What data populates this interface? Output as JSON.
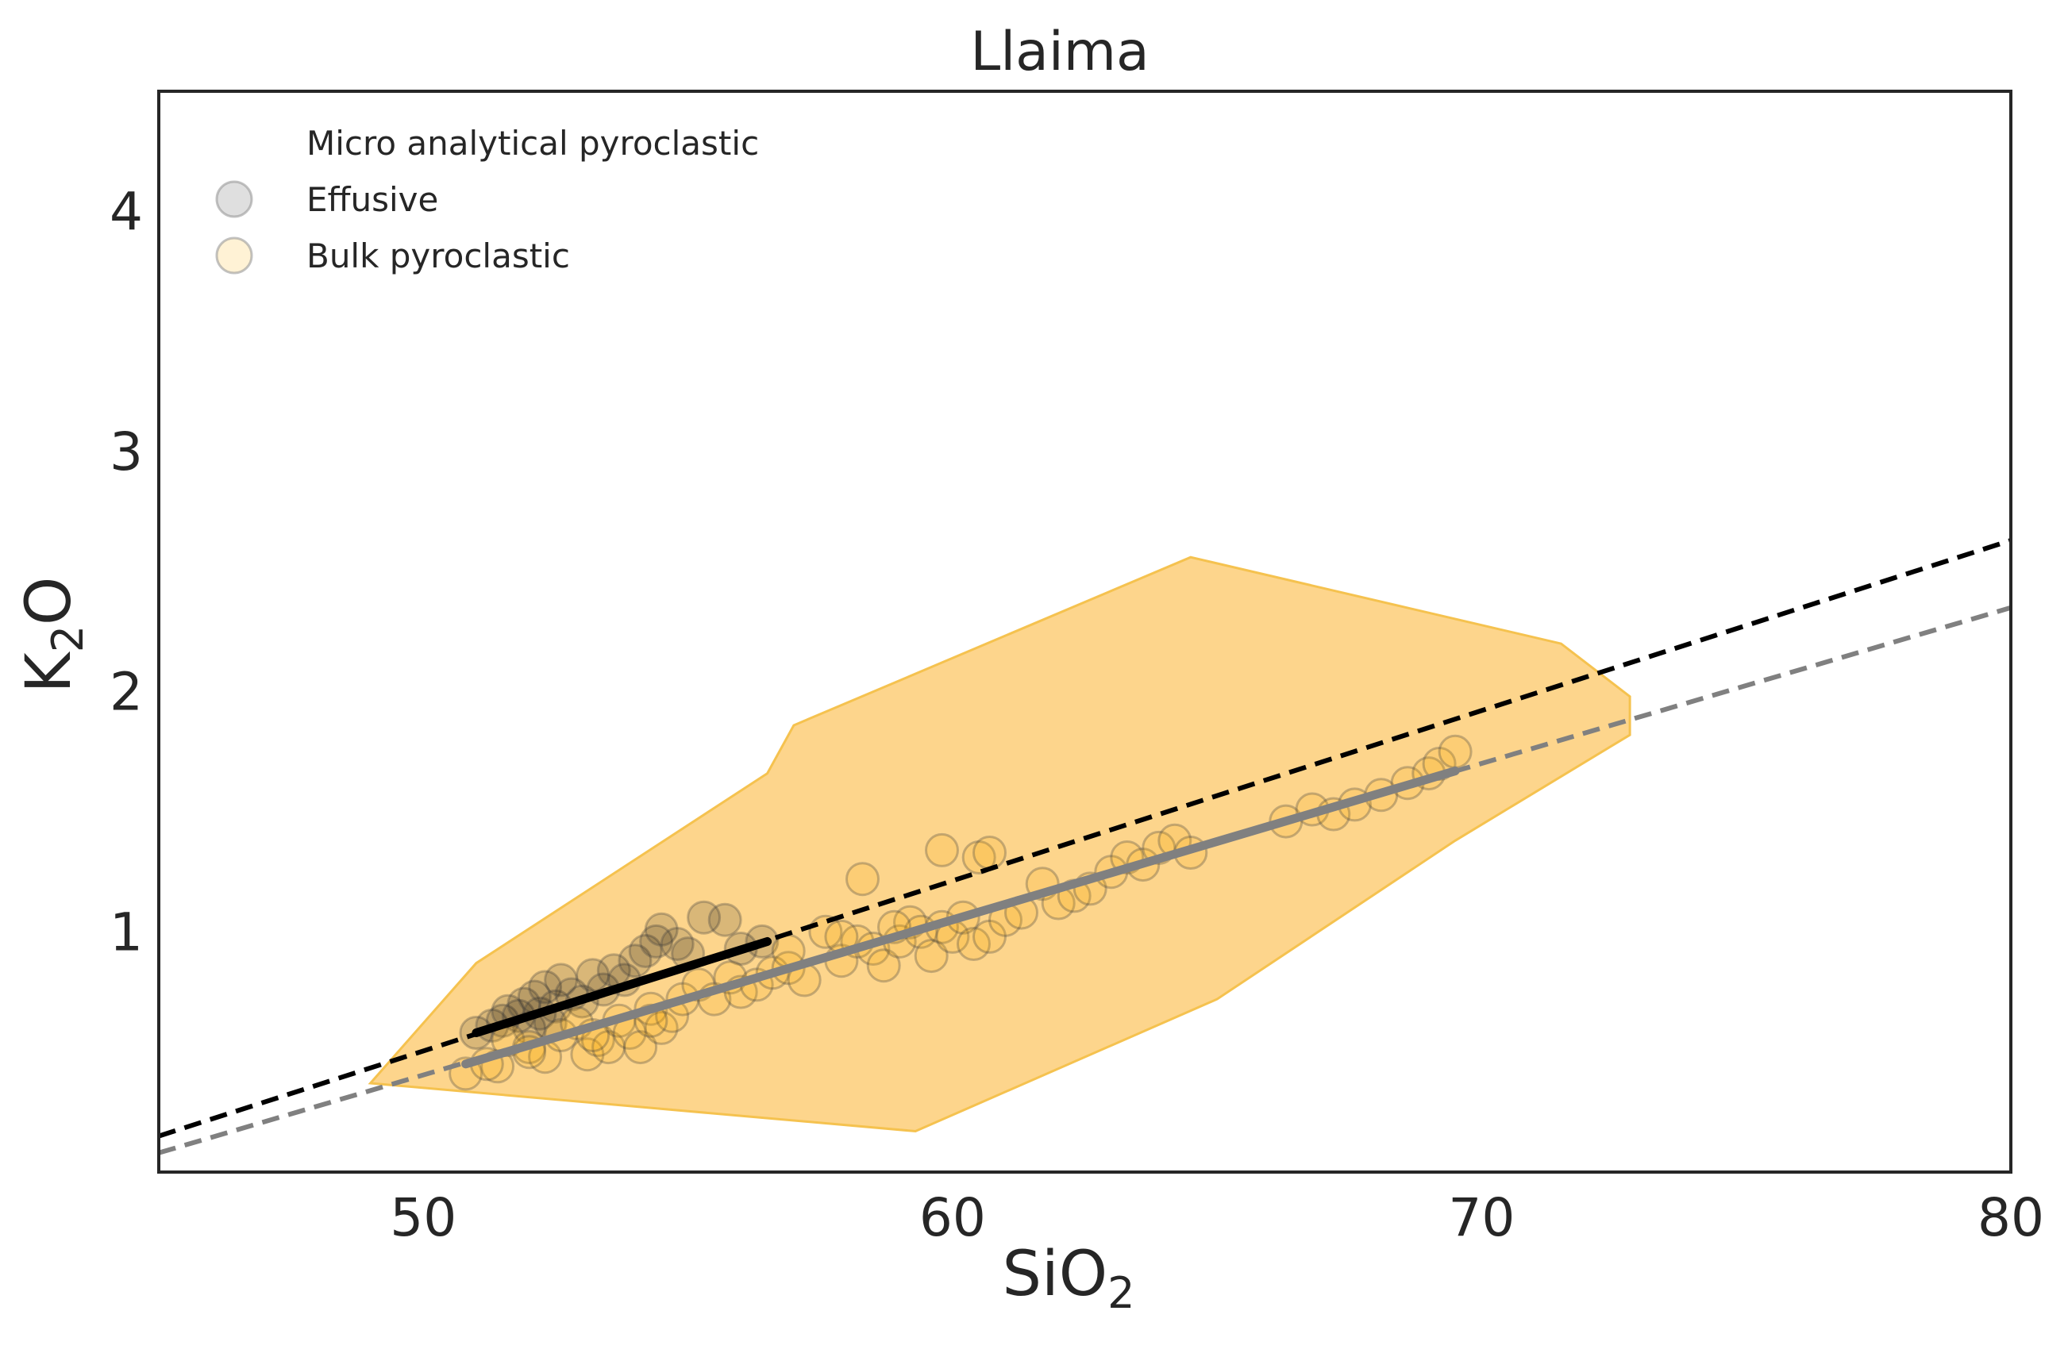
{
  "chart_data": {
    "type": "scatter",
    "title": "Llaima",
    "xlabel": {
      "main": "SiO",
      "sub": "2"
    },
    "ylabel": {
      "main": "K",
      "sub": "2",
      "suffix": "O"
    },
    "xlim": [
      45,
      80
    ],
    "ylim": [
      0,
      4.5
    ],
    "x_ticks": [
      50,
      60,
      70,
      80
    ],
    "y_ticks": [
      1,
      2,
      3,
      4
    ],
    "grid": false,
    "legend": {
      "placement": "top-left",
      "entries": [
        {
          "label": "Micro analytical pyroclastic",
          "marker": "none"
        },
        {
          "label": "Effusive",
          "marker": "circle",
          "color": "#808080"
        },
        {
          "label": "Bulk pyroclastic",
          "marker": "circle",
          "color": "#FFE8B3"
        }
      ]
    },
    "colors": {
      "hull_fill": "#FDD58C",
      "hull_stroke": "#F5C24F",
      "marker_fill": "#F6A800",
      "marker_stroke": "#404040",
      "trend_effusive": "#000000",
      "trend_bulk": "#808080"
    },
    "hull": [
      [
        49.0,
        0.37
      ],
      [
        51.0,
        0.87
      ],
      [
        56.5,
        1.66
      ],
      [
        57.0,
        1.86
      ],
      [
        64.5,
        2.56
      ],
      [
        71.5,
        2.2
      ],
      [
        72.8,
        1.98
      ],
      [
        72.8,
        1.82
      ],
      [
        69.5,
        1.38
      ],
      [
        65.0,
        0.72
      ],
      [
        59.3,
        0.17
      ],
      [
        49.0,
        0.37
      ]
    ],
    "trend_lines": [
      {
        "name": "effusive-fit-extrapolated",
        "style": "dashed",
        "color": "#000000",
        "x": [
          45,
          80
        ],
        "y": [
          0.15,
          2.63
        ]
      },
      {
        "name": "bulk-fit-extrapolated",
        "style": "dashed",
        "color": "#808080",
        "x": [
          45,
          80
        ],
        "y": [
          0.08,
          2.35
        ]
      },
      {
        "name": "effusive-fit",
        "style": "solid",
        "color": "#000000",
        "x": [
          51.0,
          56.5
        ],
        "y": [
          0.58,
          0.96
        ]
      },
      {
        "name": "bulk-fit",
        "style": "solid",
        "color": "#808080",
        "x": [
          50.8,
          69.5
        ],
        "y": [
          0.45,
          1.67
        ]
      }
    ],
    "series": [
      {
        "name": "Effusive",
        "color": "#000000",
        "points": [
          [
            51.0,
            0.58
          ],
          [
            51.3,
            0.61
          ],
          [
            51.5,
            0.63
          ],
          [
            51.6,
            0.67
          ],
          [
            51.8,
            0.65
          ],
          [
            51.9,
            0.7
          ],
          [
            52.0,
            0.6
          ],
          [
            52.1,
            0.73
          ],
          [
            52.2,
            0.66
          ],
          [
            52.3,
            0.77
          ],
          [
            52.4,
            0.62
          ],
          [
            52.5,
            0.69
          ],
          [
            52.6,
            0.8
          ],
          [
            52.8,
            0.74
          ],
          [
            53.0,
            0.71
          ],
          [
            53.2,
            0.82
          ],
          [
            53.4,
            0.76
          ],
          [
            53.6,
            0.84
          ],
          [
            53.8,
            0.8
          ],
          [
            54.0,
            0.88
          ],
          [
            54.2,
            0.92
          ],
          [
            54.4,
            0.96
          ],
          [
            54.5,
            1.01
          ],
          [
            54.8,
            0.95
          ],
          [
            55.0,
            0.91
          ],
          [
            55.3,
            1.06
          ],
          [
            55.7,
            1.05
          ],
          [
            56.0,
            0.93
          ],
          [
            56.4,
            0.96
          ]
        ]
      },
      {
        "name": "Bulk pyroclastic",
        "color": "#F6A800",
        "points": [
          [
            50.8,
            0.41
          ],
          [
            51.4,
            0.44
          ],
          [
            51.6,
            0.55
          ],
          [
            52.0,
            0.52
          ],
          [
            52.3,
            0.48
          ],
          [
            52.6,
            0.57
          ],
          [
            52.9,
            0.62
          ],
          [
            53.1,
            0.49
          ],
          [
            53.3,
            0.55
          ],
          [
            53.5,
            0.52
          ],
          [
            53.7,
            0.63
          ],
          [
            53.9,
            0.58
          ],
          [
            54.1,
            0.52
          ],
          [
            54.3,
            0.68
          ],
          [
            54.5,
            0.6
          ],
          [
            54.7,
            0.65
          ],
          [
            54.9,
            0.72
          ],
          [
            55.2,
            0.78
          ],
          [
            55.5,
            0.72
          ],
          [
            55.8,
            0.81
          ],
          [
            56.0,
            0.75
          ],
          [
            56.3,
            0.78
          ],
          [
            56.6,
            0.83
          ],
          [
            56.9,
            0.85
          ],
          [
            57.2,
            0.8
          ],
          [
            57.6,
            1.0
          ],
          [
            57.9,
            0.88
          ],
          [
            58.2,
            0.96
          ],
          [
            58.5,
            0.93
          ],
          [
            58.7,
            0.86
          ],
          [
            59.0,
            0.96
          ],
          [
            59.2,
            1.04
          ],
          [
            59.4,
            1.0
          ],
          [
            59.6,
            0.9
          ],
          [
            59.8,
            1.02
          ],
          [
            60.0,
            0.98
          ],
          [
            60.2,
            1.06
          ],
          [
            60.4,
            0.95
          ],
          [
            60.7,
            0.98
          ],
          [
            61.0,
            1.05
          ],
          [
            61.3,
            1.08
          ],
          [
            61.7,
            1.2
          ],
          [
            62.0,
            1.12
          ],
          [
            62.3,
            1.15
          ],
          [
            62.6,
            1.18
          ],
          [
            63.0,
            1.25
          ],
          [
            63.3,
            1.31
          ],
          [
            63.6,
            1.28
          ],
          [
            63.9,
            1.35
          ],
          [
            64.2,
            1.38
          ],
          [
            64.5,
            1.33
          ],
          [
            66.3,
            1.46
          ],
          [
            66.8,
            1.51
          ],
          [
            67.2,
            1.49
          ],
          [
            67.6,
            1.53
          ],
          [
            68.1,
            1.57
          ],
          [
            68.6,
            1.62
          ],
          [
            69.0,
            1.66
          ],
          [
            69.2,
            1.7
          ],
          [
            69.5,
            1.75
          ],
          [
            59.8,
            1.34
          ],
          [
            60.5,
            1.31
          ],
          [
            60.7,
            1.33
          ],
          [
            58.3,
            1.22
          ],
          [
            56.9,
            0.92
          ],
          [
            54.3,
            0.63
          ],
          [
            53.2,
            0.57
          ],
          [
            52.0,
            0.5
          ],
          [
            51.2,
            0.45
          ],
          [
            57.9,
            0.98
          ],
          [
            58.9,
            1.02
          ]
        ]
      }
    ]
  }
}
